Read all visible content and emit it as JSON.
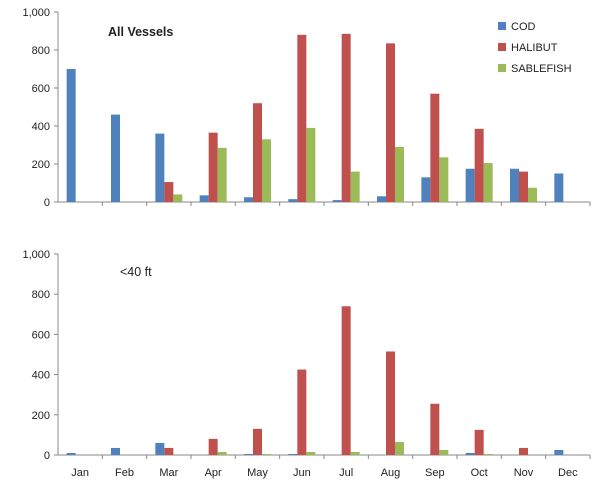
{
  "chart_data": [
    {
      "type": "bar",
      "title": "All Vessels",
      "categories": [
        "Jan",
        "Feb",
        "Mar",
        "Apr",
        "May",
        "Jun",
        "Jul",
        "Aug",
        "Sep",
        "Oct",
        "Nov",
        "Dec"
      ],
      "series": [
        {
          "name": "COD",
          "color": "#4f81bd",
          "values": [
            700,
            460,
            360,
            35,
            25,
            15,
            10,
            30,
            130,
            175,
            175,
            150
          ]
        },
        {
          "name": "HALIBUT",
          "color": "#c0504d",
          "values": [
            0,
            0,
            105,
            365,
            520,
            880,
            885,
            835,
            570,
            385,
            160,
            0
          ]
        },
        {
          "name": "SABLEFISH",
          "color": "#9bbb59",
          "values": [
            0,
            0,
            40,
            285,
            330,
            390,
            160,
            290,
            235,
            205,
            75,
            0
          ]
        }
      ],
      "ylim": [
        0,
        1000
      ],
      "yticks": [
        "0",
        "200",
        "400",
        "600",
        "800",
        "1,000"
      ],
      "legend_position": "top-right",
      "grid": false
    },
    {
      "type": "bar",
      "title": "<40 ft",
      "categories": [
        "Jan",
        "Feb",
        "Mar",
        "Apr",
        "May",
        "Jun",
        "Jul",
        "Aug",
        "Sep",
        "Oct",
        "Nov",
        "Dec"
      ],
      "series": [
        {
          "name": "COD",
          "color": "#4f81bd",
          "values": [
            10,
            35,
            60,
            0,
            5,
            5,
            0,
            0,
            0,
            10,
            0,
            25
          ]
        },
        {
          "name": "HALIBUT",
          "color": "#c0504d",
          "values": [
            0,
            0,
            35,
            80,
            130,
            425,
            740,
            515,
            255,
            125,
            35,
            0
          ]
        },
        {
          "name": "SABLEFISH",
          "color": "#9bbb59",
          "values": [
            0,
            0,
            0,
            15,
            5,
            15,
            15,
            65,
            25,
            5,
            0,
            0
          ]
        }
      ],
      "ylim": [
        0,
        1000
      ],
      "yticks": [
        "0",
        "200",
        "400",
        "600",
        "800",
        "1,000"
      ],
      "grid": false
    }
  ]
}
